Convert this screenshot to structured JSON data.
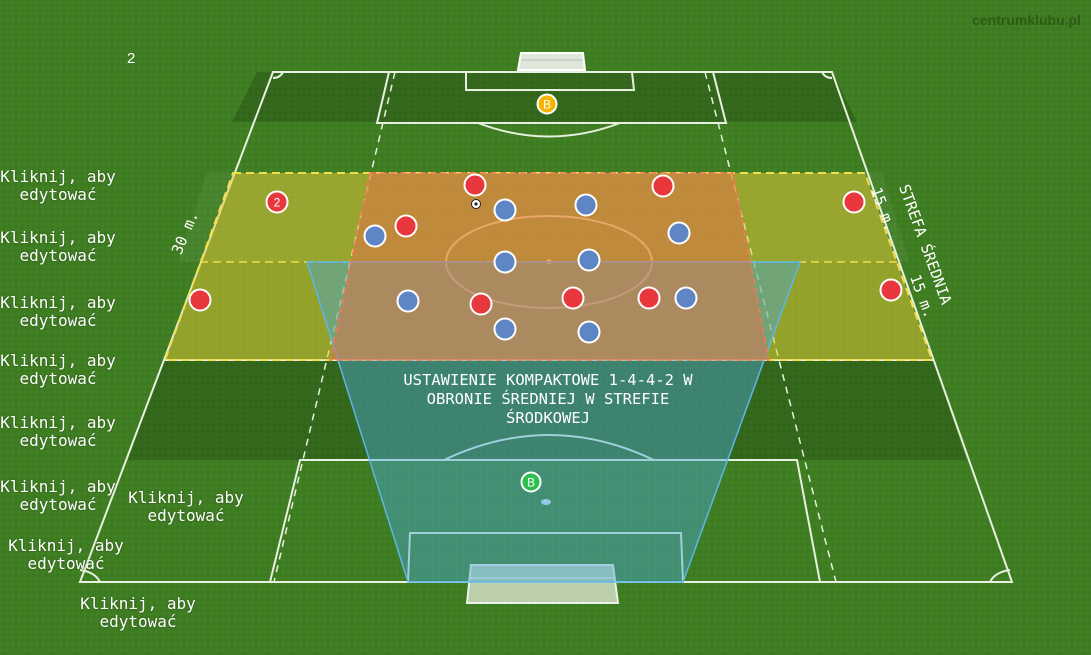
{
  "brand": "centrumklubu.pl",
  "corner_number": "2",
  "diagram_title": "USTAWIENIE KOMPAKTOWE 1-4-4-2 W\nOBRONIE ŚREDNIEJ W STREFIE\nŚRODKOWEJ",
  "zone_label": "STREFA ŚREDNIA",
  "measure_30": "30 m.",
  "measure_15_top": "15 m.",
  "measure_15_bottom": "15 m.",
  "edit_label": "Kliknij, aby\nedytować",
  "edit_labels": [
    "Kliknij, aby\nedytować",
    "Kliknij, aby\nedytować",
    "Kliknij, aby\nedytować",
    "Kliknij, aby\nedytować",
    "Kliknij, aby\nedytować",
    "Kliknij, aby\nedytować",
    "Kliknij, aby\nedytować",
    "Kliknij, aby\nedytować",
    "Kliknij, aby\nedytować"
  ],
  "goalkeeper_top": "B",
  "goalkeeper_bottom": "B",
  "red_player_number": "2",
  "colors": {
    "grass": "#3f7d22",
    "red_team": "#e8383d",
    "blue_team": "#5f86c4",
    "goalkeeper_yellow": "#f4b400",
    "goalkeeper_green": "#2fbf4f",
    "zone_yellow": "#e8c832",
    "zone_red": "#e8704a",
    "zone_blue": "#4aa6d8"
  }
}
